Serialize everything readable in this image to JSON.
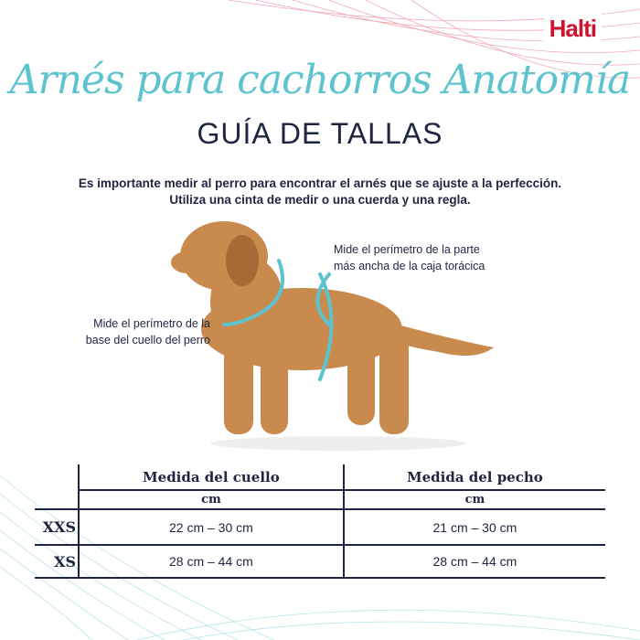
{
  "brand": {
    "logo": "Halti",
    "logo_color": "#d0122f"
  },
  "title_script": "Arnés para cachorros Anatomía",
  "title": "GUÍA DE TALLAS",
  "intro": [
    "Es importante medir al perro para encontrar el arnés que se ajuste a la perfección.",
    "Utiliza una cinta de medir o una cuerda y una regla."
  ],
  "notes": {
    "chest": [
      "Mide el perímetro de la parte",
      "más ancha de la caja torácica"
    ],
    "neck": [
      "Mide el perímetro de la",
      "base del cuello del perro"
    ]
  },
  "colors": {
    "accent": "#5cc3cf",
    "text": "#1d2540"
  },
  "table": {
    "headers": [
      "Medida del cuello",
      "Medida del pecho"
    ],
    "units": [
      "cm",
      "cm"
    ],
    "rows": [
      {
        "size": "XXS",
        "neck": "22 cm – 30 cm",
        "chest": "21 cm – 30 cm"
      },
      {
        "size": "XS",
        "neck": "28 cm – 44 cm",
        "chest": "28 cm – 44 cm"
      }
    ]
  }
}
